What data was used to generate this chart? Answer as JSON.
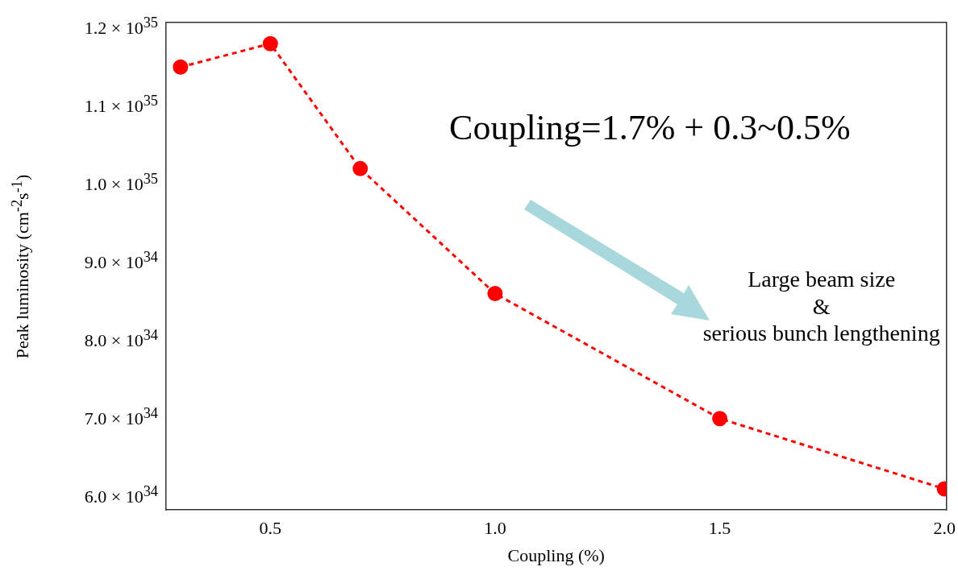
{
  "chart_data": {
    "type": "line",
    "xlabel": "Coupling (%)",
    "ylabel": "Peak luminosity (cm$^{-2}$s$^{-1}$)",
    "x": [
      0.3,
      0.5,
      0.7,
      1.0,
      1.5,
      2.0
    ],
    "series": [
      {
        "color": "#ff0000",
        "values": [
          1.15e+35,
          1.18e+35,
          1.02e+35,
          8.6e+34,
          7e+34,
          6.1e+34
        ]
      }
    ],
    "xlim": [
      0.268,
      2.004
    ],
    "ylim": [
      5.83e+34,
      1.207e+35
    ],
    "xticks": [
      0.5,
      {
        "value": 1,
        "label": "1.0"
      },
      1.5,
      {
        "value": 2,
        "label": "2.0"
      }
    ],
    "yticks": [
      {
        "value": 6e+34,
        "label": "6.0 × 10$^{34}$"
      },
      {
        "value": 7e+34,
        "label": "7.0 × 10$^{34}$"
      },
      {
        "value": 8e+34,
        "label": "8.0 × 10$^{34}$"
      },
      {
        "value": 9e+34,
        "label": "9.0 × 10$^{34}$"
      },
      {
        "value": 1e+35,
        "label": "1.0 × 10$^{35}$"
      },
      {
        "value": 1.1e+35,
        "label": "1.1 × 10$^{35}$"
      },
      {
        "value": 1.2e+35,
        "label": "1.2 × 10$^{35}$"
      }
    ],
    "grid": false,
    "legend": false,
    "marker": "circle",
    "line_style": "dashed",
    "annotations": [
      "Coupling=1.7% + 0.3~0.5%",
      "Large beam size\n&\nserious bunch lengthening"
    ]
  }
}
